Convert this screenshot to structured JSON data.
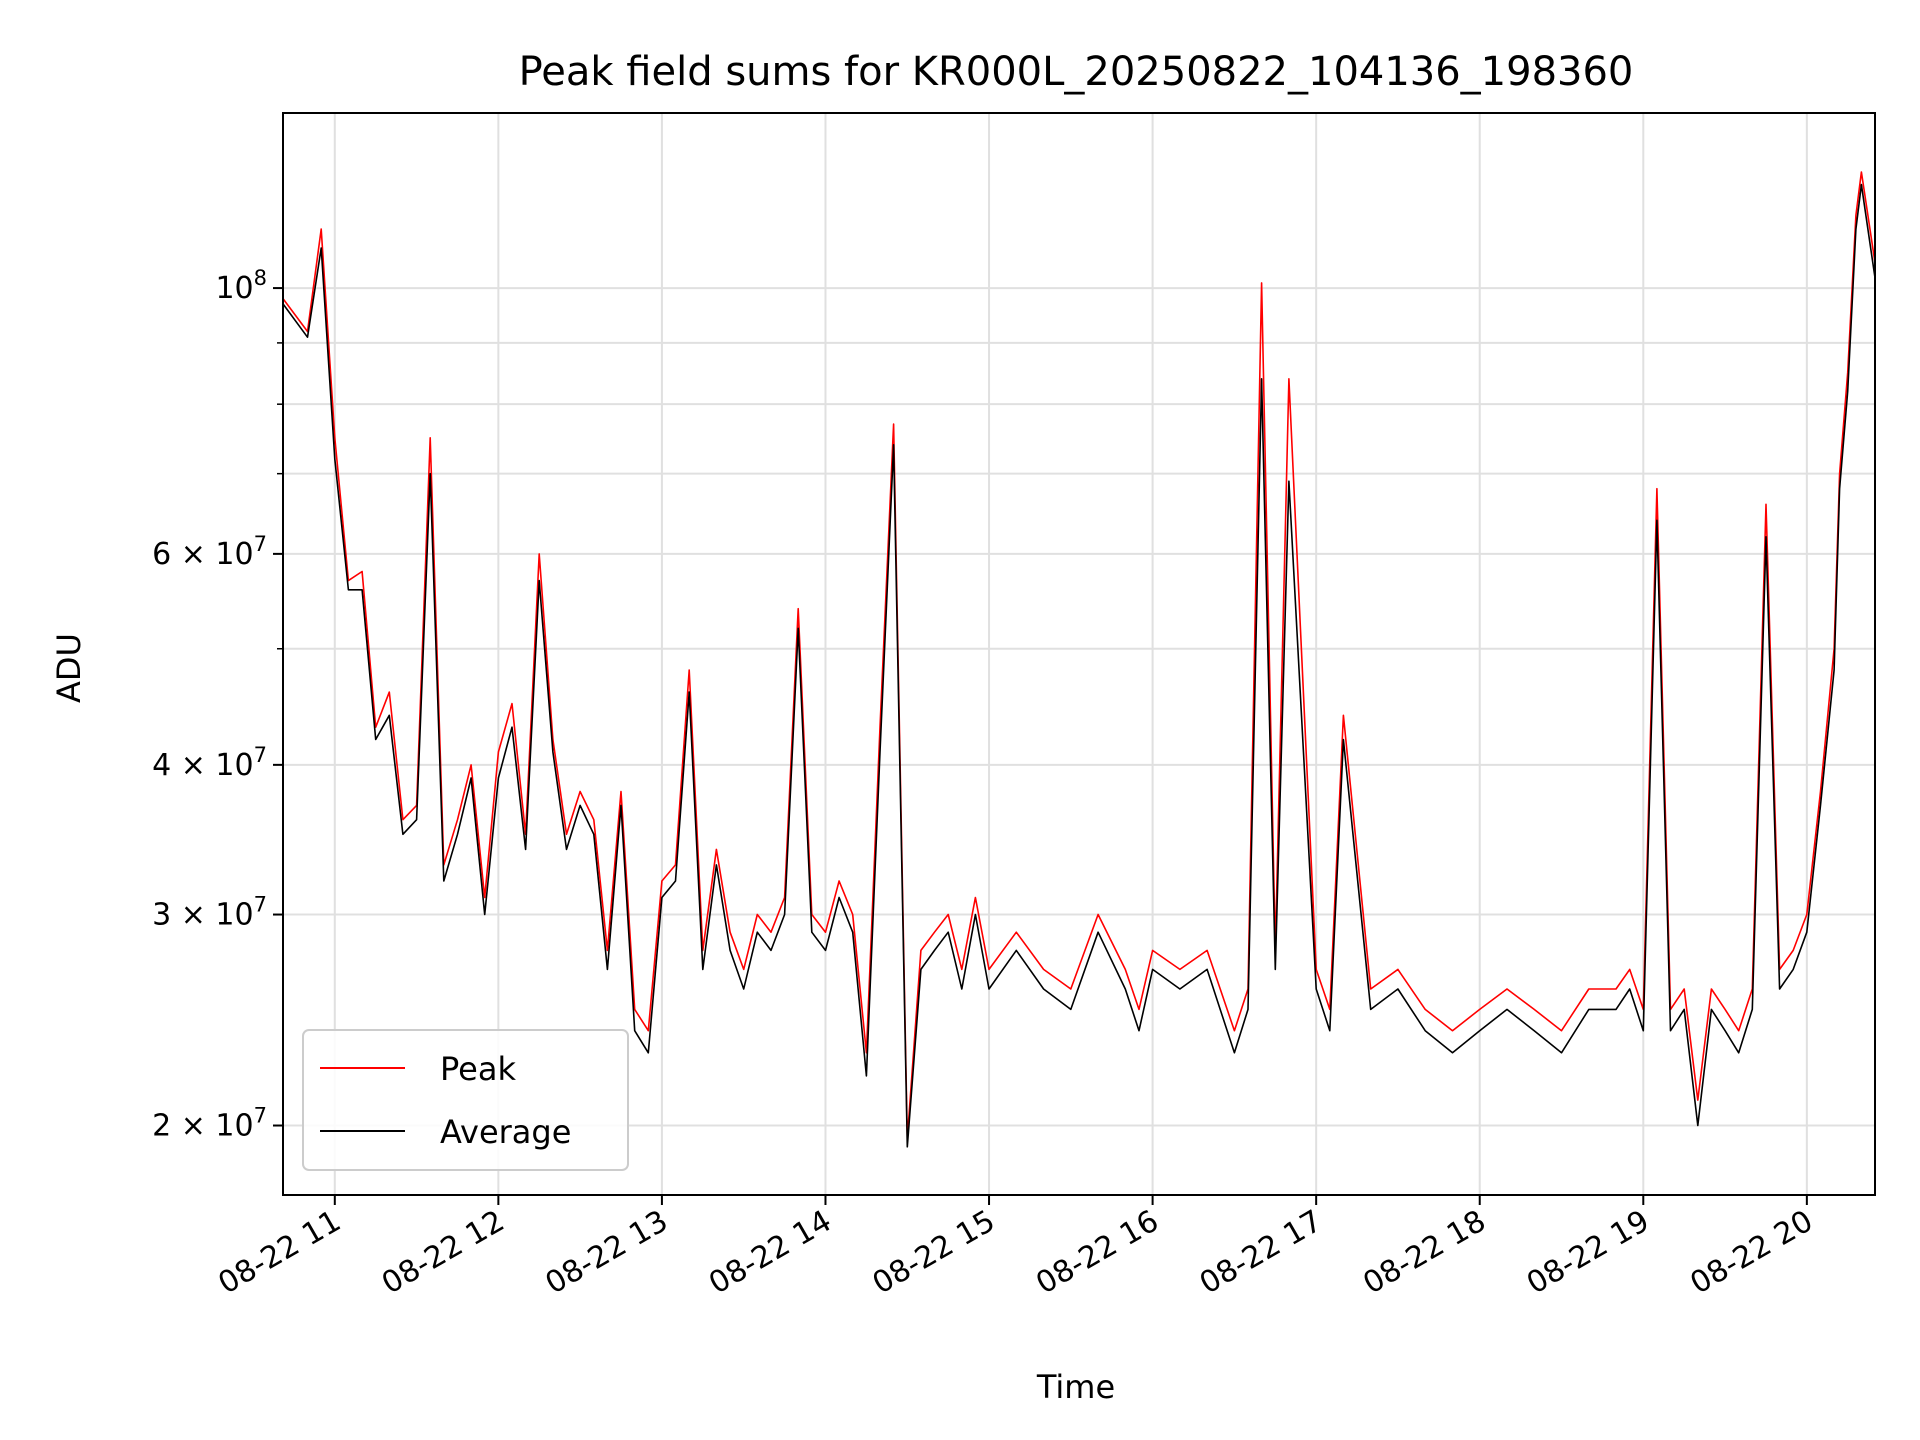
{
  "chart_data": {
    "type": "line",
    "title": "Peak field sums for KR000L_20250822_104136_198360",
    "xlabel": "Time",
    "ylabel": "ADU",
    "yscale": "log",
    "xlim": [
      "2025-08-22 10:41",
      "2025-08-22 20:25"
    ],
    "ylim": [
      17500000,
      140000000
    ],
    "grid": true,
    "legend_position": "lower-left",
    "x_tick_labels": [
      "08-22 11",
      "08-22 12",
      "08-22 13",
      "08-22 14",
      "08-22 15",
      "08-22 16",
      "08-22 17",
      "08-22 18",
      "08-22 19",
      "08-22 20"
    ],
    "y_tick_labels": [
      {
        "value": 20000000,
        "label": "2 × 10^7"
      },
      {
        "value": 30000000,
        "label": "3 × 10^7"
      },
      {
        "value": 40000000,
        "label": "4 × 10^7"
      },
      {
        "value": 60000000,
        "label": "6 × 10^7"
      },
      {
        "value": 100000000,
        "label": "10^8"
      }
    ],
    "x_times": [
      "2025-08-22 10:41",
      "2025-08-22 10:50",
      "2025-08-22 10:55",
      "2025-08-22 11:00",
      "2025-08-22 11:05",
      "2025-08-22 11:10",
      "2025-08-22 11:15",
      "2025-08-22 11:20",
      "2025-08-22 11:25",
      "2025-08-22 11:30",
      "2025-08-22 11:35",
      "2025-08-22 11:40",
      "2025-08-22 11:45",
      "2025-08-22 11:50",
      "2025-08-22 11:55",
      "2025-08-22 12:00",
      "2025-08-22 12:05",
      "2025-08-22 12:10",
      "2025-08-22 12:15",
      "2025-08-22 12:20",
      "2025-08-22 12:25",
      "2025-08-22 12:30",
      "2025-08-22 12:35",
      "2025-08-22 12:40",
      "2025-08-22 12:45",
      "2025-08-22 12:50",
      "2025-08-22 12:55",
      "2025-08-22 13:00",
      "2025-08-22 13:05",
      "2025-08-22 13:10",
      "2025-08-22 13:15",
      "2025-08-22 13:20",
      "2025-08-22 13:25",
      "2025-08-22 13:30",
      "2025-08-22 13:35",
      "2025-08-22 13:40",
      "2025-08-22 13:45",
      "2025-08-22 13:50",
      "2025-08-22 13:55",
      "2025-08-22 14:00",
      "2025-08-22 14:05",
      "2025-08-22 14:10",
      "2025-08-22 14:15",
      "2025-08-22 14:20",
      "2025-08-22 14:25",
      "2025-08-22 14:30",
      "2025-08-22 14:35",
      "2025-08-22 14:40",
      "2025-08-22 14:45",
      "2025-08-22 14:50",
      "2025-08-22 14:55",
      "2025-08-22 15:00",
      "2025-08-22 15:10",
      "2025-08-22 15:20",
      "2025-08-22 15:30",
      "2025-08-22 15:40",
      "2025-08-22 15:50",
      "2025-08-22 15:55",
      "2025-08-22 16:00",
      "2025-08-22 16:10",
      "2025-08-22 16:20",
      "2025-08-22 16:30",
      "2025-08-22 16:35",
      "2025-08-22 16:40",
      "2025-08-22 16:45",
      "2025-08-22 16:50",
      "2025-08-22 17:00",
      "2025-08-22 17:05",
      "2025-08-22 17:10",
      "2025-08-22 17:20",
      "2025-08-22 17:30",
      "2025-08-22 17:40",
      "2025-08-22 17:50",
      "2025-08-22 18:00",
      "2025-08-22 18:10",
      "2025-08-22 18:20",
      "2025-08-22 18:30",
      "2025-08-22 18:40",
      "2025-08-22 18:50",
      "2025-08-22 18:55",
      "2025-08-22 19:00",
      "2025-08-22 19:05",
      "2025-08-22 19:10",
      "2025-08-22 19:15",
      "2025-08-22 19:20",
      "2025-08-22 19:25",
      "2025-08-22 19:30",
      "2025-08-22 19:35",
      "2025-08-22 19:40",
      "2025-08-22 19:45",
      "2025-08-22 19:50",
      "2025-08-22 19:55",
      "2025-08-22 20:00",
      "2025-08-22 20:05",
      "2025-08-22 20:10",
      "2025-08-22 20:12",
      "2025-08-22 20:15",
      "2025-08-22 20:18",
      "2025-08-22 20:20",
      "2025-08-22 20:25"
    ],
    "series": [
      {
        "name": "Peak",
        "color": "#ff0000",
        "values": [
          98000000,
          92000000,
          112000000,
          75000000,
          57000000,
          58000000,
          43000000,
          46000000,
          36000000,
          37000000,
          75000000,
          33000000,
          36000000,
          40000000,
          31000000,
          41000000,
          45000000,
          35000000,
          60000000,
          42000000,
          35000000,
          38000000,
          36000000,
          28000000,
          38000000,
          25000000,
          24000000,
          32000000,
          33000000,
          48000000,
          28000000,
          34000000,
          29000000,
          27000000,
          30000000,
          29000000,
          31000000,
          54000000,
          30000000,
          29000000,
          32000000,
          30000000,
          23000000,
          43000000,
          77000000,
          19500000,
          28000000,
          29000000,
          30000000,
          27000000,
          31000000,
          27000000,
          29000000,
          27000000,
          26000000,
          30000000,
          27000000,
          25000000,
          28000000,
          27000000,
          28000000,
          24000000,
          26000000,
          101000000,
          28000000,
          84000000,
          27000000,
          25000000,
          44000000,
          26000000,
          27000000,
          25000000,
          24000000,
          25000000,
          26000000,
          25000000,
          24000000,
          26000000,
          26000000,
          27000000,
          25000000,
          68000000,
          25000000,
          26000000,
          21000000,
          26000000,
          25000000,
          24000000,
          26000000,
          66000000,
          27000000,
          28000000,
          30000000,
          38000000,
          50000000,
          70000000,
          85000000,
          115000000,
          125000000,
          105000000
        ]
      },
      {
        "name": "Average",
        "color": "#000000",
        "values": [
          97000000,
          91000000,
          108000000,
          72000000,
          56000000,
          56000000,
          42000000,
          44000000,
          35000000,
          36000000,
          70000000,
          32000000,
          35000000,
          39000000,
          30000000,
          39000000,
          43000000,
          34000000,
          57000000,
          41000000,
          34000000,
          37000000,
          35000000,
          27000000,
          37000000,
          24000000,
          23000000,
          31000000,
          32000000,
          46000000,
          27000000,
          33000000,
          28000000,
          26000000,
          29000000,
          28000000,
          30000000,
          52000000,
          29000000,
          28000000,
          31000000,
          29000000,
          22000000,
          41000000,
          74000000,
          19200000,
          27000000,
          28000000,
          29000000,
          26000000,
          30000000,
          26000000,
          28000000,
          26000000,
          25000000,
          29000000,
          26000000,
          24000000,
          27000000,
          26000000,
          27000000,
          23000000,
          25000000,
          84000000,
          27000000,
          69000000,
          26000000,
          24000000,
          42000000,
          25000000,
          26000000,
          24000000,
          23000000,
          24000000,
          25000000,
          24000000,
          23000000,
          25000000,
          25000000,
          26000000,
          24000000,
          64000000,
          24000000,
          25000000,
          20000000,
          25000000,
          24000000,
          23000000,
          25000000,
          62000000,
          26000000,
          27000000,
          29000000,
          37000000,
          48000000,
          68000000,
          82000000,
          112000000,
          122000000,
          102000000
        ]
      }
    ]
  }
}
